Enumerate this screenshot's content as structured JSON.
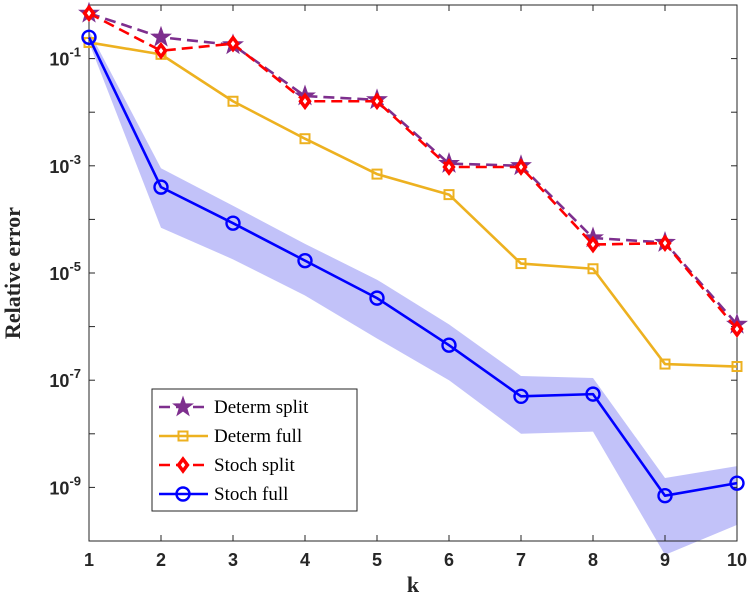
{
  "chart_data": {
    "type": "line",
    "xlabel": "k",
    "ylabel": "Relative error",
    "yscale": "log",
    "xlim": [
      1,
      10
    ],
    "ylim": [
      1e-10,
      1
    ],
    "x": [
      1,
      2,
      3,
      4,
      5,
      6,
      7,
      8,
      9,
      10
    ],
    "x_tick_labels": [
      "1",
      "2",
      "3",
      "4",
      "5",
      "6",
      "7",
      "8",
      "9",
      "10"
    ],
    "y_ticks": [
      {
        "value": 0.1,
        "base": "10",
        "exp": "-1"
      },
      {
        "value": 0.001,
        "base": "10",
        "exp": "-3"
      },
      {
        "value": 1e-05,
        "base": "10",
        "exp": "-5"
      },
      {
        "value": 1e-07,
        "base": "10",
        "exp": "-7"
      },
      {
        "value": 1e-09,
        "base": "10",
        "exp": "-9"
      }
    ],
    "legend_position": "bottom-left",
    "series": [
      {
        "name": "Determ split",
        "color": "#7e2f8e",
        "dash": "dashed",
        "marker": "star",
        "values": [
          0.7,
          0.25,
          0.18,
          0.02,
          0.017,
          0.0011,
          0.001,
          4.5e-05,
          3.7e-05,
          1.1e-06
        ]
      },
      {
        "name": "Determ full",
        "color": "#edb120",
        "dash": "solid",
        "marker": "square",
        "values": [
          0.2,
          0.12,
          0.016,
          0.0032,
          0.0007,
          0.00029,
          1.5e-05,
          1.2e-05,
          2e-07,
          1.8e-07
        ]
      },
      {
        "name": "Stoch split",
        "color": "#ff0000",
        "dash": "dashed",
        "marker": "diamond",
        "values": [
          0.7,
          0.14,
          0.19,
          0.016,
          0.016,
          0.00095,
          0.00095,
          3.4e-05,
          3.6e-05,
          9e-07
        ]
      },
      {
        "name": "Stoch full",
        "color": "#0000ff",
        "dash": "solid",
        "marker": "circle",
        "values": [
          0.25,
          0.0004,
          8.5e-05,
          1.7e-05,
          3.4e-06,
          4.5e-07,
          5e-08,
          5.5e-08,
          7e-10,
          1.2e-09
        ]
      }
    ],
    "band": {
      "name": "Stoch full spread",
      "color": "#b7b7f8",
      "upper": [
        0.33,
        0.0009,
        0.00018,
        3.5e-05,
        7.5e-06,
        1.1e-06,
        1.2e-07,
        1.1e-07,
        1.5e-09,
        2.5e-09
      ],
      "lower": [
        0.2,
        7e-05,
        1.8e-05,
        3.8e-06,
        6e-07,
        1e-07,
        1e-08,
        1.1e-08,
        5.5e-11,
        2e-10
      ]
    }
  }
}
